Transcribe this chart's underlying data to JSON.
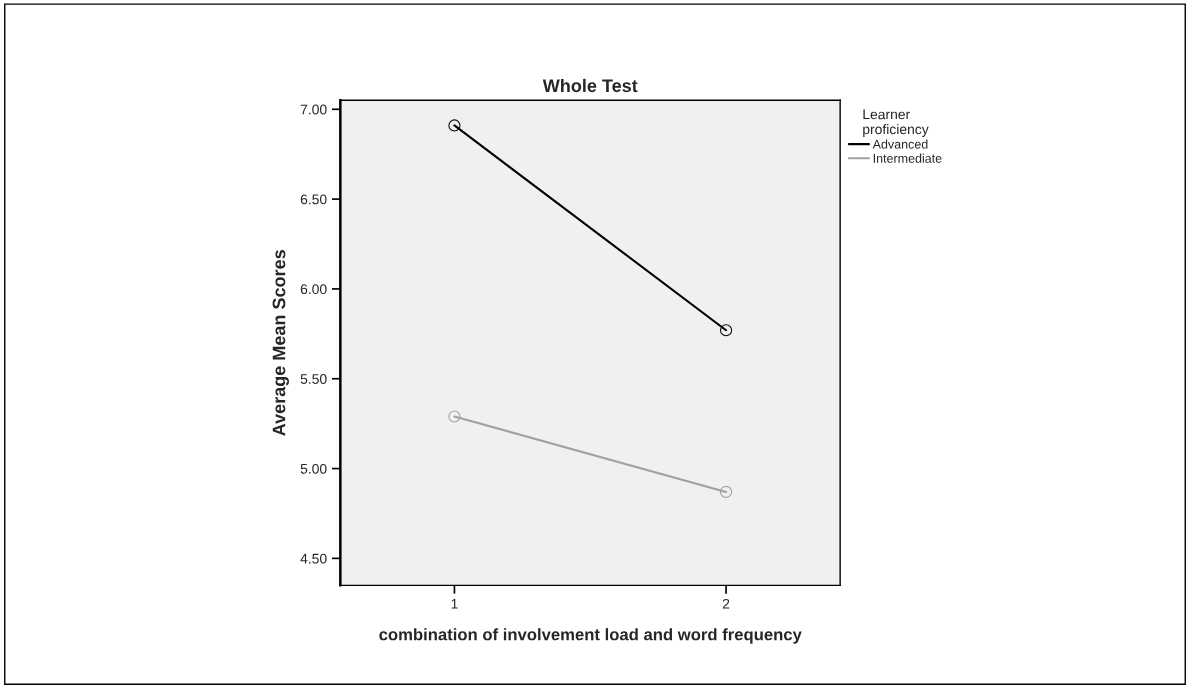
{
  "chart_data": {
    "type": "line",
    "title": "Whole Test",
    "xlabel": "combination of involvement load and word frequency",
    "ylabel": "Average Mean Scores",
    "legend_title": "Learner\nproficiency",
    "categories": [
      "1",
      "2"
    ],
    "series": [
      {
        "name": "Advanced",
        "color": "#000000",
        "values": [
          6.91,
          5.77
        ]
      },
      {
        "name": "Intermediate",
        "color": "#a0a0a0",
        "values": [
          5.29,
          4.87
        ]
      }
    ],
    "ylim": [
      4.35,
      7.05
    ],
    "yticks": [
      {
        "value": 4.5,
        "label": "4.50"
      },
      {
        "value": 5.0,
        "label": "5.00"
      },
      {
        "value": 5.5,
        "label": "5.50"
      },
      {
        "value": 6.0,
        "label": "6.00"
      },
      {
        "value": 6.5,
        "label": "6.50"
      },
      {
        "value": 7.0,
        "label": "7.00"
      }
    ],
    "marker": "circle",
    "line_style": "solid",
    "grid": false,
    "legend": "right"
  }
}
